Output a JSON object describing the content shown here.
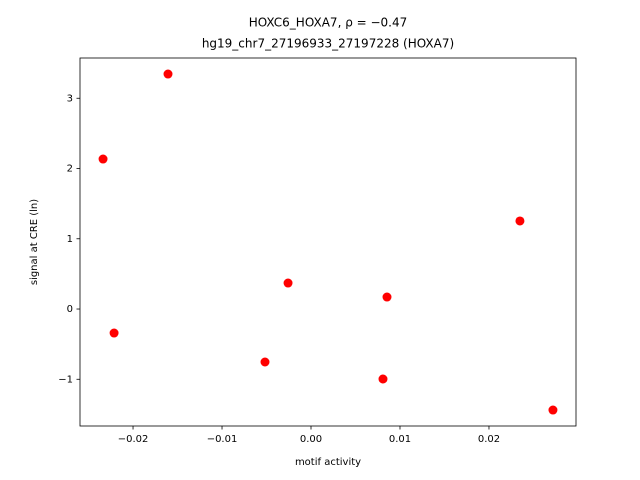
{
  "chart_data": {
    "type": "scatter",
    "title": "HOXC6_HOXA7, ρ = −0.47",
    "subtitle": "hg19_chr7_27196933_27197228 (HOXA7)",
    "x_label": "motif activity",
    "y_label": "signal at CRE (ln)",
    "color": "#ff0000",
    "series": [
      {
        "name": "samples",
        "color": "#ff0000",
        "x": [
          -0.01607,
          -0.02337,
          -0.02213,
          -0.00517,
          -0.00258,
          0.00854,
          0.00809,
          0.02348,
          0.02719
        ],
        "values": [
          3.345,
          2.135,
          -0.342,
          -0.754,
          0.37,
          0.171,
          -0.996,
          1.253,
          -1.438
        ]
      }
    ],
    "xlim": [
      -0.02596,
      0.02978
    ],
    "ylim": [
      -1.665,
      3.573
    ],
    "xticks": [
      {
        "value": -0.02,
        "label": "−0.02"
      },
      {
        "value": -0.01,
        "label": "−0.01"
      },
      {
        "value": 0,
        "label": "0.00"
      },
      0.01,
      0.02
    ],
    "yticks": [
      {
        "value": -1,
        "label": "−1"
      },
      0,
      1,
      2,
      3
    ],
    "grid": false
  }
}
